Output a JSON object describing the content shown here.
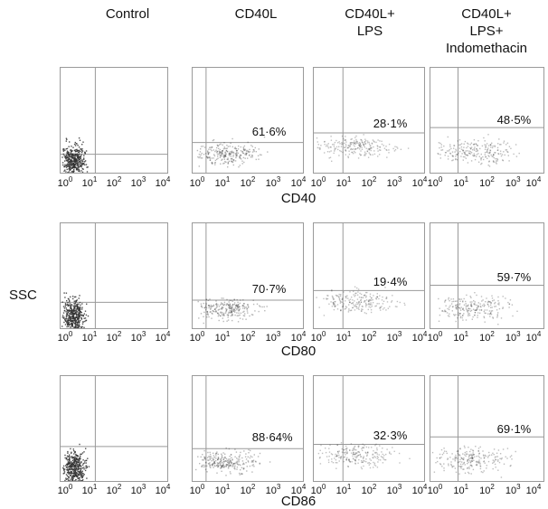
{
  "conditions": [
    "Control",
    "CD40L",
    "CD40L+\nLPS",
    "CD40L+\nLPS+\nIndomethacin"
  ],
  "y_label": "SSC",
  "x_ticks": [
    {
      "base": "10",
      "exp": "0"
    },
    {
      "base": "10",
      "exp": "1"
    },
    {
      "base": "10",
      "exp": "2"
    },
    {
      "base": "10",
      "exp": "3"
    },
    {
      "base": "10",
      "exp": "4"
    }
  ],
  "rows": [
    {
      "marker": "CD40",
      "percents": [
        "",
        "61·6%",
        "28·1%",
        "48·5%"
      ]
    },
    {
      "marker": "CD80",
      "percents": [
        "",
        "70·7%",
        "19·4%",
        "59·7%"
      ]
    },
    {
      "marker": "CD86",
      "percents": [
        "",
        "88·64%",
        "32·3%",
        "69·1%"
      ]
    }
  ],
  "chart_data": {
    "type": "scatter",
    "title": "",
    "x_scale": "log",
    "xlim": [
      1,
      10000
    ],
    "ylabel": "SSC",
    "row_variables": [
      "CD40",
      "CD80",
      "CD86"
    ],
    "columns": [
      "Control",
      "CD40L",
      "CD40L+LPS",
      "CD40L+LPS+Indomethacin"
    ],
    "gated_positive_percent": [
      {
        "marker": "CD40",
        "values": [
          null,
          61.6,
          28.1,
          48.5
        ]
      },
      {
        "marker": "CD80",
        "values": [
          null,
          70.7,
          19.4,
          59.7
        ]
      },
      {
        "marker": "CD86",
        "values": [
          null,
          88.64,
          32.3,
          69.1
        ]
      }
    ],
    "colors": {
      "dots": "#333333",
      "gate_lines": "#999999"
    }
  }
}
